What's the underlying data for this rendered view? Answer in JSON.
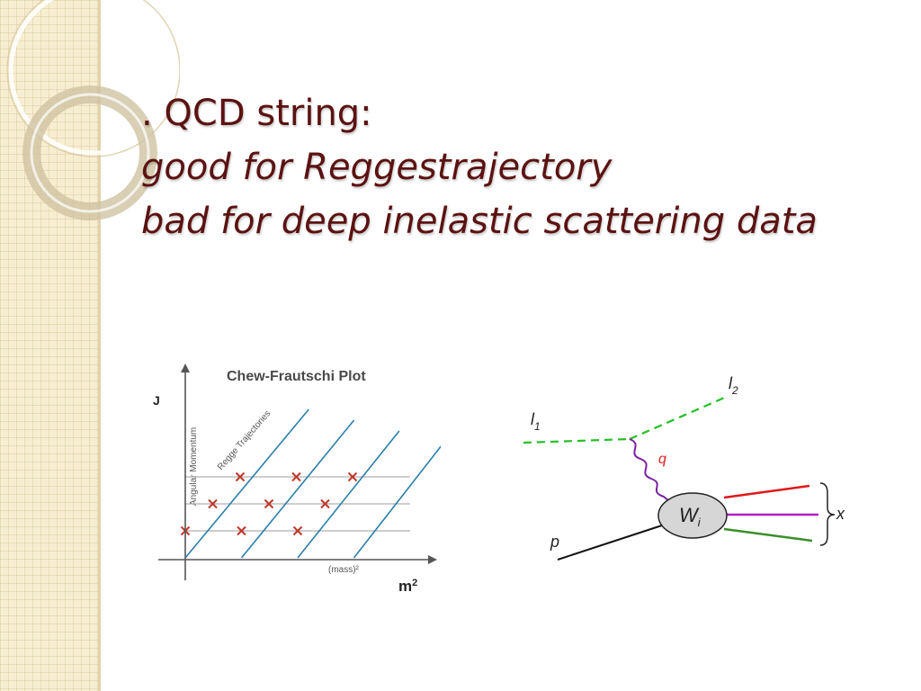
{
  "slide": {
    "title_lines": [
      ". QCD string:",
      "good for Reggestrajectory",
      "bad for deep inelastic scattering data"
    ]
  },
  "chew_frautschi": {
    "title": "Chew-Frautschi Plot",
    "y_axis_symbol": "J",
    "y_axis_caption": "Angular Momentum",
    "x_axis_symbol": "m²",
    "x_axis_caption": "(mass)²",
    "diagonal_caption": "Regge Trajectories",
    "colors": {
      "trajectory": "#2a7fa8",
      "marker": "#c0392b",
      "level": "#b0b0b0",
      "axis": "#555555"
    }
  },
  "chart_data": {
    "type": "scatter",
    "title": "Chew-Frautschi Plot",
    "xlabel": "(mass)²",
    "ylabel": "Angular Momentum",
    "trajectory_offsets": [
      0,
      1,
      2,
      3
    ],
    "levels": [
      1,
      2,
      3
    ],
    "points": [
      {
        "trajectory": 0,
        "level": 1
      },
      {
        "trajectory": 0,
        "level": 2
      },
      {
        "trajectory": 0,
        "level": 3
      },
      {
        "trajectory": 1,
        "level": 1
      },
      {
        "trajectory": 1,
        "level": 2
      },
      {
        "trajectory": 1,
        "level": 3
      },
      {
        "trajectory": 2,
        "level": 1
      },
      {
        "trajectory": 2,
        "level": 2
      },
      {
        "trajectory": 2,
        "level": 3
      }
    ]
  },
  "dis_diagram": {
    "incoming_lepton_label": "l",
    "incoming_lepton_subscript": "1",
    "outgoing_lepton_label": "l",
    "outgoing_lepton_subscript": "2",
    "photon_label": "q",
    "proton_label": "p",
    "blob_label": "W",
    "blob_subscript": "i",
    "final_state_label": "x",
    "colors": {
      "lepton": "#22c022",
      "photon": "#7a1fa2",
      "photon_label": "#dd2222",
      "blob_fill": "#d6d6d6",
      "jet_red": "#e01818",
      "jet_magenta": "#b020c0",
      "jet_green": "#3a8f2a"
    }
  }
}
